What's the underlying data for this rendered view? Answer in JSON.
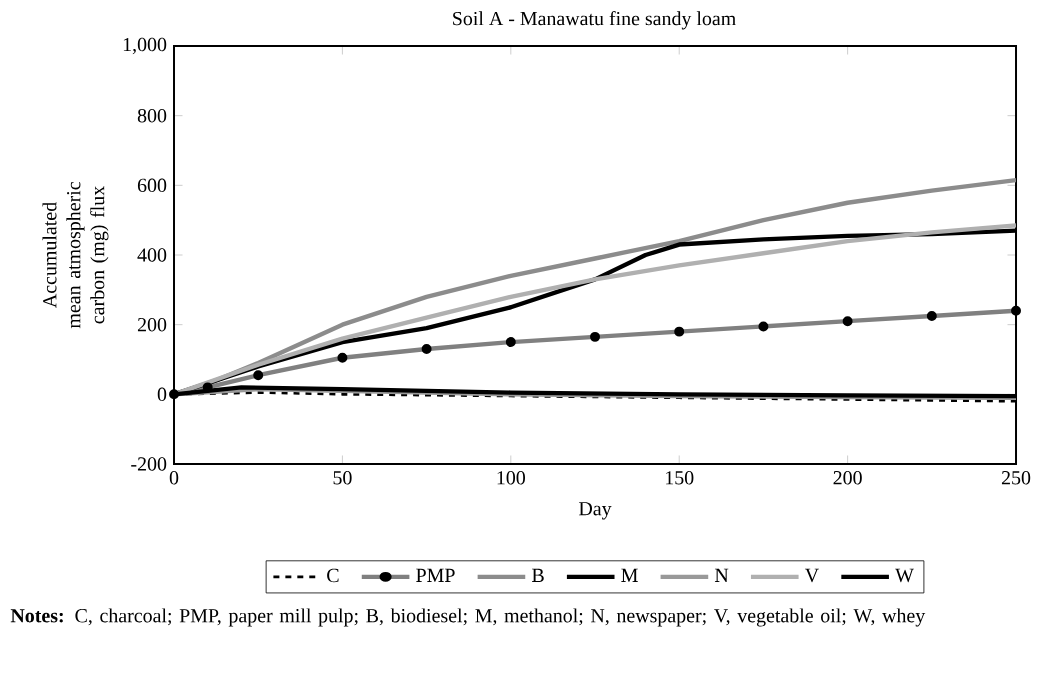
{
  "chart_data": {
    "type": "line",
    "title": "Soil A - Manawatu fine sandy loam",
    "xlabel": "Day",
    "ylabel": "Accumulated mean atmospheric carbon (mg) flux",
    "xlim": [
      0,
      250
    ],
    "xticks": [
      0,
      50,
      100,
      150,
      200,
      250
    ],
    "ylim": [
      -200,
      1000
    ],
    "yticks": [
      -200,
      0,
      200,
      400,
      600,
      800,
      {
        "value": 1000,
        "label": "1,000"
      }
    ],
    "grid": false,
    "legend": "bottom",
    "series": [
      {
        "name": "C",
        "color": "#000000",
        "line_style": "dashed",
        "x": [
          0,
          25,
          50,
          100,
          150,
          200,
          250
        ],
        "values": [
          0,
          5,
          0,
          -5,
          -10,
          -15,
          -20
        ]
      },
      {
        "name": "PMP",
        "color": "#808080",
        "marker": "circle",
        "x": [
          0,
          10,
          25,
          50,
          75,
          100,
          125,
          150,
          175,
          200,
          225,
          250
        ],
        "values": [
          0,
          20,
          55,
          105,
          130,
          150,
          165,
          180,
          195,
          210,
          225,
          240
        ]
      },
      {
        "name": "B",
        "color": "#8c8c8c",
        "x": [
          0,
          10,
          25,
          50,
          75,
          100,
          125,
          150,
          175,
          200,
          225,
          250
        ],
        "values": [
          0,
          30,
          90,
          200,
          280,
          340,
          390,
          440,
          500,
          550,
          585,
          615
        ]
      },
      {
        "name": "M",
        "color": "#000000",
        "x": [
          0,
          25,
          50,
          75,
          100,
          125,
          140,
          150,
          175,
          200,
          225,
          250
        ],
        "values": [
          0,
          80,
          150,
          190,
          250,
          330,
          400,
          430,
          445,
          455,
          460,
          470
        ]
      },
      {
        "name": "N",
        "color": "#999999",
        "x": [
          0,
          25,
          50,
          100,
          150,
          200,
          250
        ],
        "values": [
          0,
          15,
          10,
          0,
          -5,
          -8,
          -10
        ]
      },
      {
        "name": "V",
        "color": "#b0b0b0",
        "x": [
          0,
          25,
          50,
          75,
          100,
          125,
          150,
          175,
          200,
          225,
          250
        ],
        "values": [
          0,
          85,
          160,
          220,
          280,
          330,
          370,
          405,
          440,
          465,
          485
        ]
      },
      {
        "name": "W",
        "color": "#000000",
        "x": [
          0,
          20,
          50,
          100,
          150,
          200,
          250
        ],
        "values": [
          0,
          20,
          15,
          5,
          0,
          -3,
          -5
        ]
      }
    ],
    "annotations": [
      "**Notes:** C, charcoal; PMP, paper mill pulp; B, biodiesel; M, methanol; N, newspaper; V, vegetable oil; W, whey"
    ]
  }
}
